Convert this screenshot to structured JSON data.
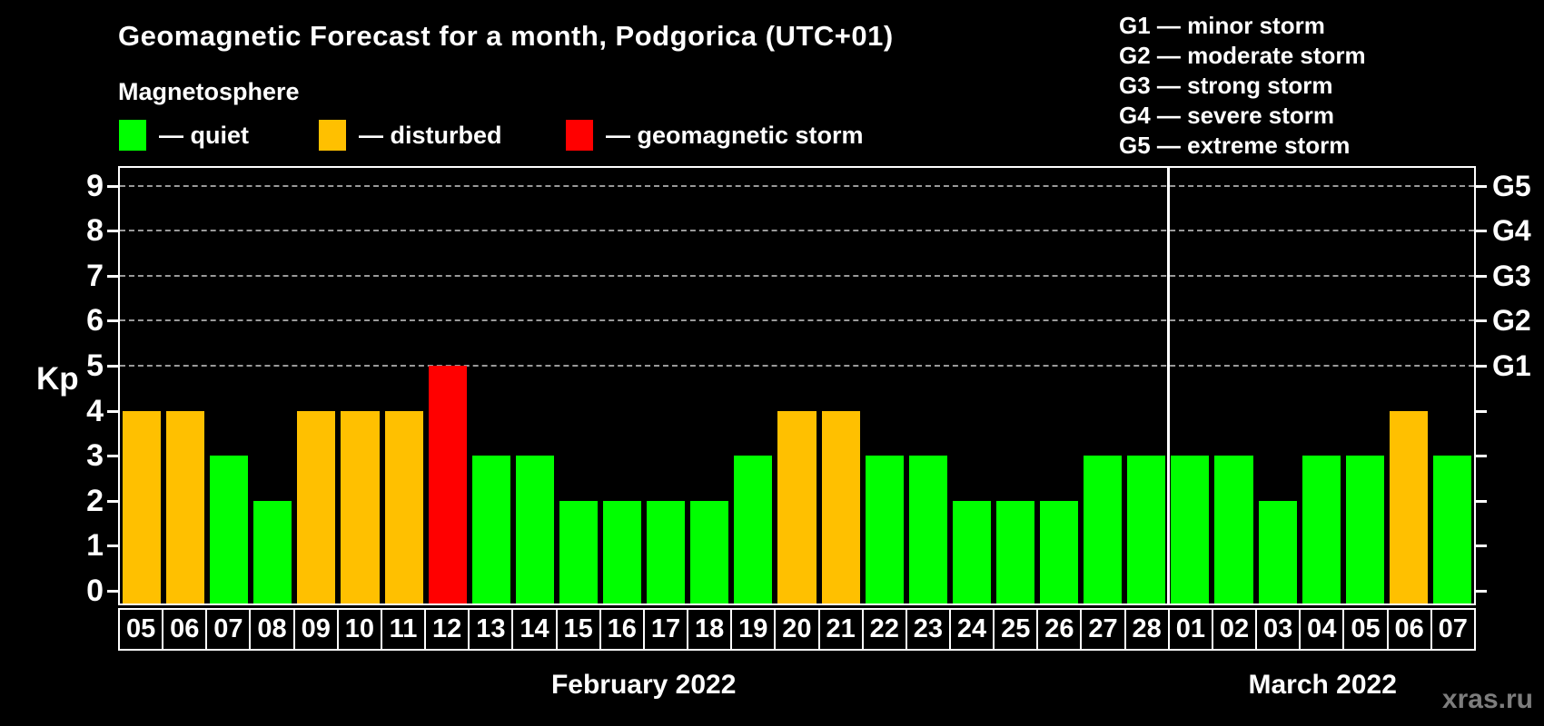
{
  "title": "Geomagnetic Forecast for a month, Podgorica (UTC+01)",
  "legend": {
    "heading": "Magnetosphere",
    "items": [
      {
        "key": "quiet",
        "label": "— quiet",
        "color": "#00ff00"
      },
      {
        "key": "disturbed",
        "label": "— disturbed",
        "color": "#ffc000"
      },
      {
        "key": "storm",
        "label": "— geomagnetic storm",
        "color": "#ff0000"
      }
    ]
  },
  "g_scale_legend": [
    "G1 — minor storm",
    "G2 — moderate storm",
    "G3 — strong storm",
    "G4 — severe storm",
    "G5 — extreme storm"
  ],
  "watermark": "xras.ru",
  "chart_data": {
    "type": "bar",
    "ylabel": "Kp",
    "ylim": [
      0,
      9.4
    ],
    "yticks": [
      0,
      1,
      2,
      3,
      4,
      5,
      6,
      7,
      8,
      9
    ],
    "gridlines_at": [
      5,
      6,
      7,
      8,
      9
    ],
    "grid": true,
    "right_axis_labels": [
      {
        "value": 5,
        "label": "G1"
      },
      {
        "value": 6,
        "label": "G2"
      },
      {
        "value": 7,
        "label": "G3"
      },
      {
        "value": 8,
        "label": "G4"
      },
      {
        "value": 9,
        "label": "G5"
      }
    ],
    "months": [
      {
        "label": "February 2022",
        "days": 24
      },
      {
        "label": "March 2022",
        "days": 7
      }
    ],
    "categories": [
      "05",
      "06",
      "07",
      "08",
      "09",
      "10",
      "11",
      "12",
      "13",
      "14",
      "15",
      "16",
      "17",
      "18",
      "19",
      "20",
      "21",
      "22",
      "23",
      "24",
      "25",
      "26",
      "27",
      "28",
      "01",
      "02",
      "03",
      "04",
      "05",
      "06",
      "07"
    ],
    "values": [
      4,
      4,
      3,
      2,
      4,
      4,
      4,
      5,
      3,
      3,
      2,
      2,
      2,
      2,
      3,
      4,
      4,
      3,
      3,
      2,
      2,
      2,
      3,
      3,
      3,
      3,
      2,
      3,
      3,
      4,
      3
    ],
    "statuses": [
      "disturbed",
      "disturbed",
      "quiet",
      "quiet",
      "disturbed",
      "disturbed",
      "disturbed",
      "storm",
      "quiet",
      "quiet",
      "quiet",
      "quiet",
      "quiet",
      "quiet",
      "quiet",
      "disturbed",
      "disturbed",
      "quiet",
      "quiet",
      "quiet",
      "quiet",
      "quiet",
      "quiet",
      "quiet",
      "quiet",
      "quiet",
      "quiet",
      "quiet",
      "quiet",
      "disturbed",
      "quiet"
    ]
  }
}
